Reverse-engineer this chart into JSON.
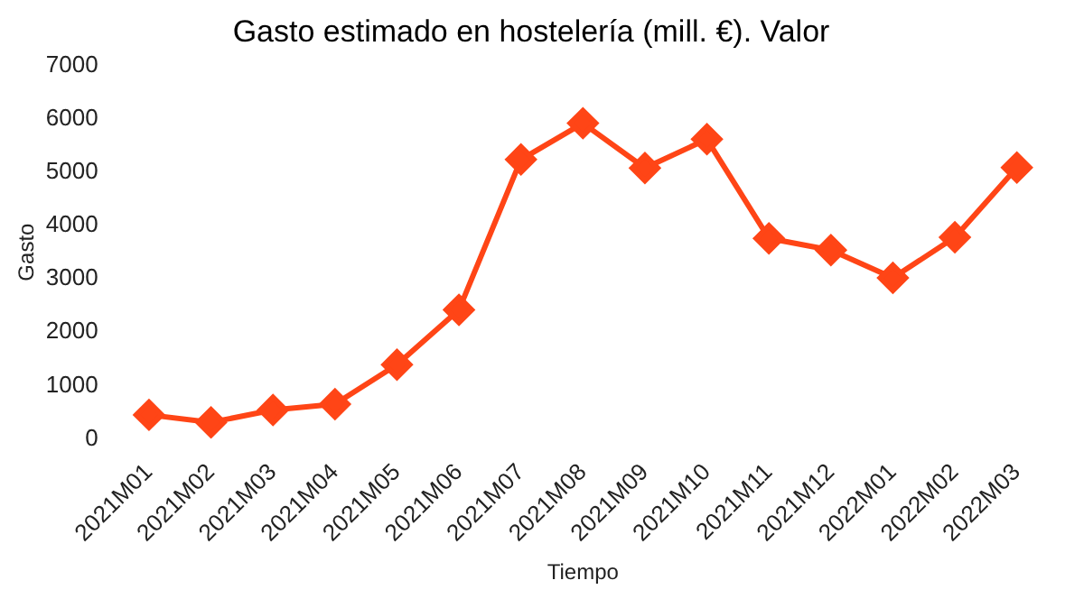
{
  "chart_data": {
    "type": "line",
    "title": "Gasto estimado en hostelería (mill. €). Valor",
    "xlabel": "Tiempo",
    "ylabel": "Gasto",
    "categories": [
      "2021M01",
      "2021M02",
      "2021M03",
      "2021M04",
      "2021M05",
      "2021M06",
      "2021M07",
      "2021M08",
      "2021M09",
      "2021M10",
      "2021M11",
      "2021M12",
      "2022M01",
      "2022M02",
      "2022M03"
    ],
    "series": [
      {
        "color": "#ff4516",
        "values": [
          450,
          310,
          540,
          650,
          1390,
          2420,
          5240,
          5920,
          5080,
          5620,
          3760,
          3540,
          3020,
          3780,
          5090
        ]
      }
    ],
    "ylim": [
      0,
      7000
    ],
    "yticks": [
      0,
      1000,
      2000,
      3000,
      4000,
      5000,
      6000,
      7000
    ],
    "grid": false,
    "legend": false,
    "marker": "diamond",
    "line_style": "solid"
  }
}
